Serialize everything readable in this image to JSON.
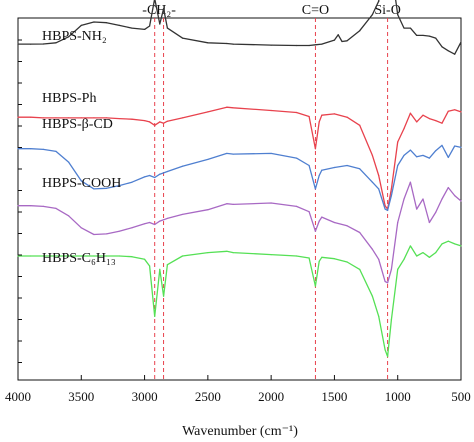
{
  "chart_data": {
    "type": "line",
    "title": "",
    "xlabel": "Wavenumber (cm⁻¹)",
    "ylabel": "",
    "xlim": [
      4000,
      500
    ],
    "x_reversed": true,
    "x_ticks": [
      4000,
      3500,
      3000,
      2500,
      2000,
      1500,
      1000,
      500
    ],
    "grid": false,
    "legend": "none",
    "annotations": [
      {
        "text": "-CH₂-",
        "x": [
          2920,
          2850
        ]
      },
      {
        "text": "C=O",
        "x": [
          1650
        ]
      },
      {
        "text": "Si-O",
        "x": [
          1080
        ]
      }
    ],
    "series": [
      {
        "name": "HBPS-NH₂",
        "color": "#333333",
        "x": [
          4000,
          3900,
          3800,
          3700,
          3600,
          3500,
          3400,
          3300,
          3200,
          3100,
          3000,
          2960,
          2920,
          2880,
          2850,
          2820,
          2700,
          2500,
          2350,
          2300,
          2000,
          1800,
          1700,
          1650,
          1600,
          1500,
          1470,
          1440,
          1400,
          1300,
          1200,
          1150,
          1100,
          1080,
          1050,
          1000,
          950,
          900,
          850,
          800,
          750,
          700,
          650,
          600,
          550,
          500
        ],
        "y": [
          0.6,
          0.6,
          0.62,
          0.8,
          1.7,
          3.4,
          3.9,
          3.8,
          3.4,
          3.0,
          2.8,
          3.3,
          7.4,
          3.6,
          5.9,
          3.0,
          1.5,
          0.8,
          0.7,
          0.6,
          0.45,
          0.4,
          0.4,
          0.5,
          0.6,
          1.2,
          2.0,
          1.0,
          1.1,
          2.6,
          5.0,
          7.0,
          13.2,
          13.8,
          11.8,
          5.0,
          3.0,
          3.0,
          1.9,
          1.9,
          1.8,
          1.5,
          0.2,
          -0.4,
          -0.9,
          0.9
        ]
      },
      {
        "name": "HBPS-Ph",
        "color": "#e8424d",
        "x": [
          4000,
          3900,
          3800,
          3700,
          3600,
          3500,
          3400,
          3300,
          3200,
          3100,
          3000,
          2960,
          2920,
          2880,
          2850,
          2820,
          2700,
          2500,
          2350,
          2300,
          2000,
          1800,
          1700,
          1650,
          1620,
          1600,
          1500,
          1400,
          1300,
          1200,
          1150,
          1100,
          1080,
          1050,
          1000,
          950,
          900,
          850,
          800,
          750,
          700,
          650,
          600,
          550,
          500
        ],
        "y": [
          -10.3,
          -10.3,
          -10.4,
          -10.4,
          -10.4,
          -10.4,
          -10.4,
          -10.4,
          -10.5,
          -10.6,
          -10.8,
          -11.0,
          -11.5,
          -11.0,
          -11.2,
          -10.9,
          -10.4,
          -9.5,
          -8.8,
          -8.9,
          -9.3,
          -9.6,
          -10.2,
          -15.0,
          -11.0,
          -10.0,
          -9.8,
          -10.3,
          -11.5,
          -16.0,
          -19.0,
          -23.5,
          -24.0,
          -21.0,
          -14.0,
          -12.0,
          -9.7,
          -11.0,
          -10.0,
          -10.5,
          -10.8,
          -11.2,
          -9.4,
          -9.2,
          -9.5
        ]
      },
      {
        "name": "HBPS-β-CD",
        "color": "#4f7fd0",
        "x": [
          4000,
          3900,
          3800,
          3700,
          3600,
          3500,
          3400,
          3300,
          3200,
          3100,
          3000,
          2960,
          2920,
          2880,
          2850,
          2820,
          2700,
          2500,
          2350,
          2300,
          2000,
          1800,
          1700,
          1650,
          1620,
          1600,
          1500,
          1400,
          1300,
          1200,
          1150,
          1100,
          1080,
          1050,
          1000,
          950,
          900,
          850,
          800,
          750,
          700,
          650,
          600,
          550,
          500
        ],
        "y": [
          -15.0,
          -15.0,
          -15.1,
          -15.4,
          -17.0,
          -19.8,
          -21.0,
          -20.9,
          -20.5,
          -20.0,
          -19.2,
          -19.0,
          -19.3,
          -18.8,
          -18.6,
          -18.4,
          -17.6,
          -16.6,
          -15.7,
          -15.8,
          -15.7,
          -16.4,
          -17.5,
          -21.0,
          -19.0,
          -18.2,
          -17.8,
          -17.5,
          -18.0,
          -20.0,
          -21.0,
          -24.0,
          -24.2,
          -22.0,
          -17.5,
          -16.0,
          -15.2,
          -16.2,
          -16.0,
          -16.4,
          -15.3,
          -14.5,
          -16.3,
          -14.6,
          -14.8
        ]
      },
      {
        "name": "HBPS-COOH",
        "color": "#a869c4",
        "x": [
          4000,
          3900,
          3800,
          3700,
          3600,
          3500,
          3400,
          3300,
          3200,
          3100,
          3000,
          2960,
          2920,
          2880,
          2850,
          2820,
          2700,
          2500,
          2350,
          2300,
          2000,
          1800,
          1700,
          1650,
          1620,
          1600,
          1500,
          1400,
          1300,
          1200,
          1150,
          1100,
          1080,
          1050,
          1000,
          950,
          900,
          850,
          800,
          750,
          700,
          650,
          600,
          550,
          500
        ],
        "y": [
          -23.5,
          -23.5,
          -23.6,
          -23.9,
          -25.0,
          -26.8,
          -27.8,
          -27.7,
          -27.3,
          -26.8,
          -26.2,
          -26.0,
          -26.3,
          -25.8,
          -25.6,
          -25.4,
          -24.8,
          -24.1,
          -23.2,
          -23.3,
          -23.1,
          -23.6,
          -24.4,
          -27.3,
          -25.8,
          -25.2,
          -26.0,
          -26.5,
          -27.5,
          -30.0,
          -31.5,
          -34.8,
          -35.0,
          -33.0,
          -26.0,
          -22.5,
          -20.0,
          -24.0,
          -22.5,
          -26.0,
          -24.5,
          -22.5,
          -20.8,
          -22.0,
          -22.8
        ]
      },
      {
        "name": "HBPS-C₆H₁₃",
        "color": "#55e055",
        "x": [
          4000,
          3900,
          3800,
          3700,
          3600,
          3500,
          3400,
          3300,
          3200,
          3100,
          3000,
          2960,
          2920,
          2880,
          2850,
          2820,
          2700,
          2500,
          2350,
          2300,
          2000,
          1800,
          1700,
          1650,
          1620,
          1600,
          1500,
          1400,
          1300,
          1200,
          1150,
          1100,
          1080,
          1050,
          1000,
          950,
          900,
          850,
          800,
          750,
          700,
          650,
          600,
          550,
          500
        ],
        "y": [
          -31.0,
          -31.0,
          -31.0,
          -31.0,
          -31.0,
          -31.0,
          -31.0,
          -31.0,
          -31.0,
          -31.1,
          -31.5,
          -32.5,
          -40.0,
          -33.0,
          -37.0,
          -32.3,
          -31.0,
          -30.5,
          -30.3,
          -30.5,
          -30.8,
          -31.0,
          -31.3,
          -35.5,
          -31.8,
          -31.2,
          -31.4,
          -31.9,
          -33.0,
          -37.0,
          -40.0,
          -45.0,
          -46.0,
          -40.5,
          -33.0,
          -31.5,
          -29.5,
          -31.0,
          -30.5,
          -31.2,
          -30.5,
          -29.2,
          -28.8,
          -29.2,
          -29.5
        ]
      }
    ]
  }
}
